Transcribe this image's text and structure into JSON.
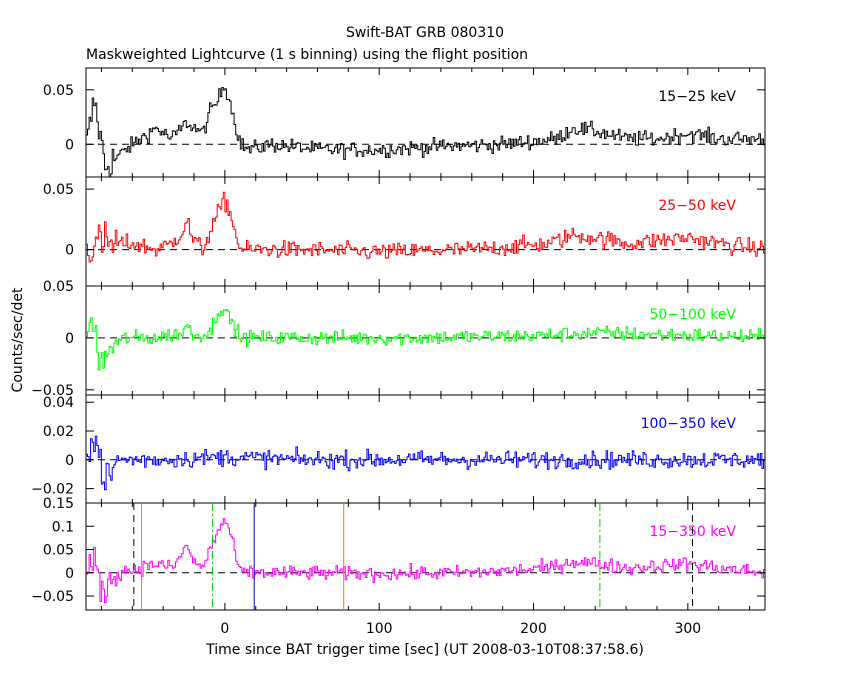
{
  "chart_data": {
    "type": "line",
    "title": "Swift-BAT GRB 080310",
    "subtitle": "Maskweighted Lightcurve (1 s binning) using the flight position",
    "xlabel": "Time since BAT trigger time [sec] (UT 2008-03-10T08:37:58.6)",
    "ylabel": "Counts/sec/det",
    "xlim": [
      -90,
      350
    ],
    "x_ticks": [
      0,
      100,
      200,
      300
    ],
    "grid": false,
    "panels": [
      {
        "name": "15-25 keV",
        "label": "15−25 keV",
        "color": "#000000",
        "ylim": [
          -0.03,
          0.07
        ],
        "y_ticks": [
          0,
          0.05
        ],
        "y_tick_labels": [
          "0",
          "0.05"
        ],
        "key_points": [
          [
            -90,
            0.0
          ],
          [
            -85,
            0.04
          ],
          [
            -78,
            -0.02
          ],
          [
            -60,
            0.0
          ],
          [
            -50,
            0.01
          ],
          [
            -45,
            0.015
          ],
          [
            -35,
            0.005
          ],
          [
            -25,
            0.02
          ],
          [
            -20,
            0.015
          ],
          [
            -15,
            0.01
          ],
          [
            -10,
            0.03
          ],
          [
            -5,
            0.04
          ],
          [
            -1,
            0.055
          ],
          [
            2,
            0.045
          ],
          [
            6,
            0.02
          ],
          [
            10,
            0.0
          ],
          [
            15,
            -0.005
          ],
          [
            30,
            0.0
          ],
          [
            60,
            -0.005
          ],
          [
            100,
            -0.005
          ],
          [
            140,
            -0.002
          ],
          [
            180,
            0.0
          ],
          [
            215,
            0.005
          ],
          [
            225,
            0.015
          ],
          [
            240,
            0.012
          ],
          [
            260,
            0.005
          ],
          [
            280,
            0.005
          ],
          [
            300,
            0.01
          ],
          [
            320,
            0.005
          ],
          [
            350,
            0.005
          ]
        ],
        "noise": 0.007
      },
      {
        "name": "25-50 keV",
        "label": "25−50 keV",
        "color": "#ff0000",
        "ylim": [
          -0.03,
          0.06
        ],
        "y_ticks": [
          0,
          0.05
        ],
        "y_tick_labels": [
          "0",
          "0.05"
        ],
        "key_points": [
          [
            -90,
            0.0
          ],
          [
            -85,
            0.005
          ],
          [
            -60,
            0.005
          ],
          [
            -45,
            0.0
          ],
          [
            -35,
            0.005
          ],
          [
            -28,
            0.015
          ],
          [
            -25,
            0.025
          ],
          [
            -22,
            0.01
          ],
          [
            -15,
            0.0
          ],
          [
            -10,
            0.015
          ],
          [
            -5,
            0.03
          ],
          [
            -1,
            0.04
          ],
          [
            2,
            0.035
          ],
          [
            6,
            0.015
          ],
          [
            10,
            0.0
          ],
          [
            40,
            0.0
          ],
          [
            100,
            -0.002
          ],
          [
            160,
            0.0
          ],
          [
            210,
            0.005
          ],
          [
            225,
            0.012
          ],
          [
            240,
            0.01
          ],
          [
            260,
            0.005
          ],
          [
            300,
            0.01
          ],
          [
            320,
            0.005
          ],
          [
            350,
            0.0
          ]
        ],
        "noise": 0.007
      },
      {
        "name": "50-100 keV",
        "label": "50−100 keV",
        "color": "#00ff00",
        "ylim": [
          -0.055,
          0.05
        ],
        "y_ticks": [
          -0.05,
          0,
          0.05
        ],
        "y_tick_labels": [
          "−0.05",
          "0",
          "0.05"
        ],
        "key_points": [
          [
            -90,
            0.0
          ],
          [
            -85,
            0.02
          ],
          [
            -82,
            -0.03
          ],
          [
            -75,
            -0.01
          ],
          [
            -65,
            0.0
          ],
          [
            -45,
            0.0
          ],
          [
            -28,
            0.005
          ],
          [
            -25,
            0.012
          ],
          [
            -20,
            0.002
          ],
          [
            -10,
            0.005
          ],
          [
            -5,
            0.025
          ],
          [
            -2,
            0.03
          ],
          [
            2,
            0.02
          ],
          [
            6,
            0.01
          ],
          [
            10,
            0.0
          ],
          [
            60,
            0.0
          ],
          [
            120,
            0.0
          ],
          [
            200,
            0.002
          ],
          [
            240,
            0.005
          ],
          [
            280,
            0.003
          ],
          [
            320,
            0.002
          ],
          [
            350,
            0.0
          ]
        ],
        "noise": 0.007
      },
      {
        "name": "100-350 keV",
        "label": "100−350 keV",
        "color": "#0000ff",
        "ylim": [
          -0.03,
          0.045
        ],
        "y_ticks": [
          -0.02,
          0,
          0.02,
          0.04
        ],
        "y_tick_labels": [
          "−0.02",
          "0",
          "0.02",
          "0.04"
        ],
        "key_points": [
          [
            -90,
            0.01
          ],
          [
            -85,
            0.015
          ],
          [
            -80,
            -0.005
          ],
          [
            -76,
            -0.015
          ],
          [
            -70,
            0.0
          ],
          [
            -40,
            0.0
          ],
          [
            0,
            0.002
          ],
          [
            50,
            0.0
          ],
          [
            150,
            0.0
          ],
          [
            250,
            0.0
          ],
          [
            350,
            0.0
          ]
        ],
        "noise": 0.006
      },
      {
        "name": "15-350 keV",
        "label": "15−350 keV",
        "color": "#ff00ff",
        "ylim": [
          -0.08,
          0.15
        ],
        "y_ticks": [
          -0.05,
          0,
          0.05,
          0.1,
          0.15
        ],
        "y_tick_labels": [
          "−0.05",
          "0",
          "0.05",
          "0.1",
          "0.15"
        ],
        "key_points": [
          [
            -90,
            0.0
          ],
          [
            -85,
            0.02
          ],
          [
            -80,
            -0.04
          ],
          [
            -70,
            0.0
          ],
          [
            -55,
            0.01
          ],
          [
            -45,
            0.02
          ],
          [
            -35,
            0.01
          ],
          [
            -28,
            0.04
          ],
          [
            -25,
            0.06
          ],
          [
            -20,
            0.02
          ],
          [
            -15,
            0.01
          ],
          [
            -10,
            0.05
          ],
          [
            -5,
            0.09
          ],
          [
            -1,
            0.11
          ],
          [
            2,
            0.1
          ],
          [
            6,
            0.04
          ],
          [
            10,
            0.0
          ],
          [
            40,
            0.0
          ],
          [
            100,
            -0.002
          ],
          [
            160,
            0.0
          ],
          [
            210,
            0.01
          ],
          [
            225,
            0.025
          ],
          [
            240,
            0.02
          ],
          [
            260,
            0.01
          ],
          [
            300,
            0.02
          ],
          [
            320,
            0.01
          ],
          [
            350,
            0.0
          ]
        ],
        "noise": 0.015
      }
    ],
    "vertical_markers": [
      {
        "x": -59,
        "color": "#000000",
        "style": "dashed"
      },
      {
        "x": -54,
        "color": "#e08a00",
        "style": "solid"
      },
      {
        "x": -8,
        "color": "#00cc00",
        "style": "dashdot"
      },
      {
        "x": 19,
        "color": "#0000aa",
        "style": "solid"
      },
      {
        "x": 77,
        "color": "#e08a00",
        "style": "solid"
      },
      {
        "x": 243,
        "color": "#00cc00",
        "style": "dashdot"
      },
      {
        "x": 303,
        "color": "#000000",
        "style": "dashed"
      }
    ]
  }
}
